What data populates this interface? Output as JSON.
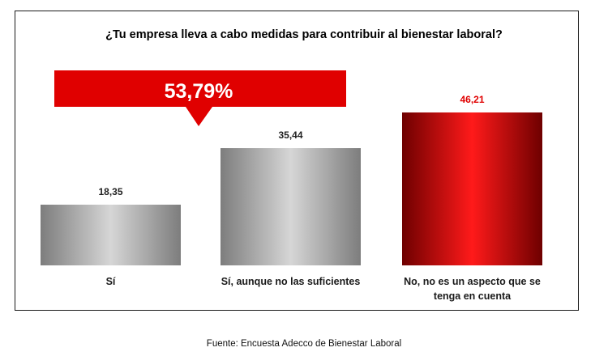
{
  "title": "¿Tu empresa lleva a cabo medidas para contribuir al bienestar laboral?",
  "source": "Fuente: Encuesta Adecco de Bienestar Laboral",
  "highlight": {
    "text": "53,79%",
    "color": "#e00000"
  },
  "chart_data": {
    "type": "bar",
    "title": "¿Tu empresa lleva a cabo medidas para contribuir al bienestar laboral?",
    "categories": [
      "Sí",
      "Sí, aunque no las suficientes",
      "No, no es un aspecto que se tenga en cuenta"
    ],
    "category_lines": [
      [
        "Sí"
      ],
      [
        "Sí, aunque no las suficientes"
      ],
      [
        "No, no es un aspecto que se",
        "tenga en cuenta"
      ]
    ],
    "values": [
      18.35,
      35.44,
      46.21
    ],
    "value_labels": [
      "18,35",
      "35,44",
      "46,21"
    ],
    "ylim": [
      0,
      50
    ],
    "grid": false,
    "bar_colors": [
      "gray",
      "gray",
      "red"
    ],
    "label_colors": [
      "#222222",
      "#222222",
      "#e00000"
    ]
  }
}
